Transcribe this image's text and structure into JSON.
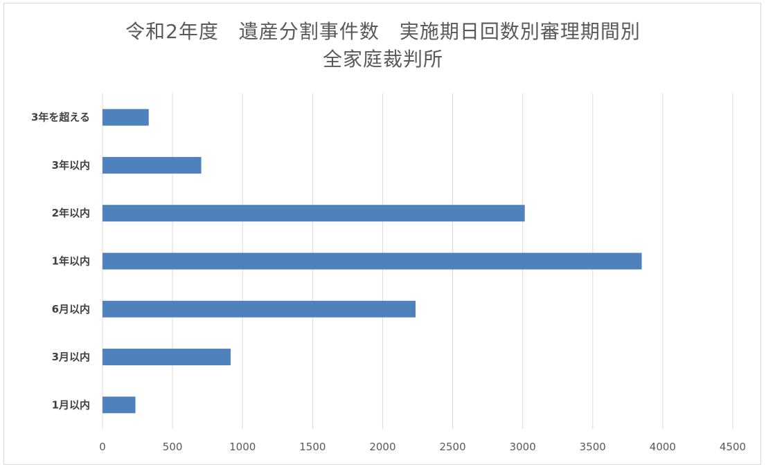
{
  "chart_data": {
    "type": "bar",
    "orientation": "horizontal",
    "title_line1": "令和2年度　遺産分割事件数　実施期日回数別審理期間別",
    "title_line2": "全家庭裁判所",
    "categories": [
      "1月以内",
      "3月以内",
      "6月以内",
      "1年以内",
      "2年以内",
      "3年以内",
      "3年を超える"
    ],
    "values": [
      235,
      915,
      2235,
      3850,
      3015,
      705,
      330
    ],
    "xlim": [
      0,
      4500
    ],
    "xticks": [
      "0",
      "500",
      "1000",
      "1500",
      "2000",
      "2500",
      "3000",
      "3500",
      "4000",
      "4500"
    ],
    "bar_color": "#4f81bd",
    "grid": true
  }
}
